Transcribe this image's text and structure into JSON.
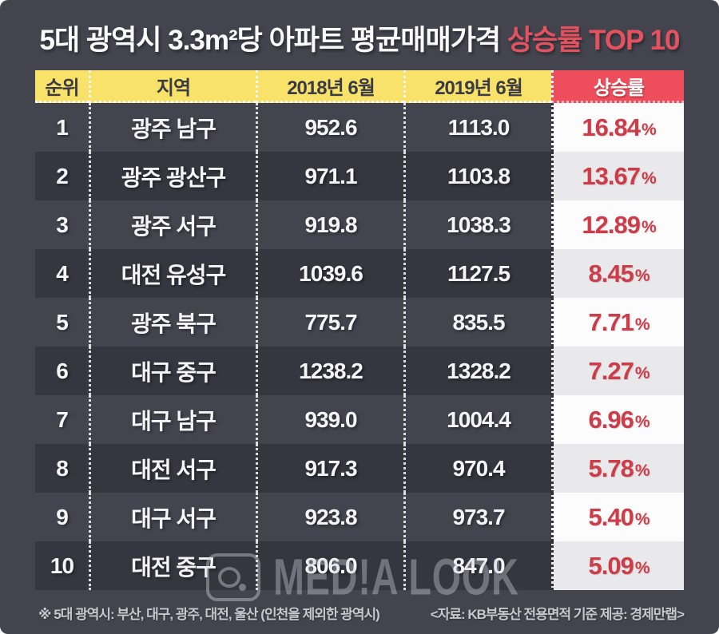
{
  "title": {
    "main": "5대 광역시 3.3m²당 아파트 평균매매가격 ",
    "highlight": "상승률 TOP 10"
  },
  "table": {
    "headers": [
      "순위",
      "지역",
      "2018년 6월",
      "2019년 6월",
      "상승률"
    ],
    "rows": [
      {
        "rank": "1",
        "region": "광주 남구",
        "v2018": "952.6",
        "v2019": "1113.0",
        "rate": "16.84",
        "unit": "%"
      },
      {
        "rank": "2",
        "region": "광주 광산구",
        "v2018": "971.1",
        "v2019": "1103.8",
        "rate": "13.67",
        "unit": "%"
      },
      {
        "rank": "3",
        "region": "광주 서구",
        "v2018": "919.8",
        "v2019": "1038.3",
        "rate": "12.89",
        "unit": "%"
      },
      {
        "rank": "4",
        "region": "대전 유성구",
        "v2018": "1039.6",
        "v2019": "1127.5",
        "rate": "8.45",
        "unit": "%"
      },
      {
        "rank": "5",
        "region": "광주 북구",
        "v2018": "775.7",
        "v2019": "835.5",
        "rate": "7.71",
        "unit": "%"
      },
      {
        "rank": "6",
        "region": "대구 중구",
        "v2018": "1238.2",
        "v2019": "1328.2",
        "rate": "7.27",
        "unit": "%"
      },
      {
        "rank": "7",
        "region": "대구 남구",
        "v2018": "939.0",
        "v2019": "1004.4",
        "rate": "6.96",
        "unit": "%"
      },
      {
        "rank": "8",
        "region": "대전 서구",
        "v2018": "917.3",
        "v2019": "970.4",
        "rate": "5.78",
        "unit": "%"
      },
      {
        "rank": "9",
        "region": "대구 서구",
        "v2018": "923.8",
        "v2019": "973.7",
        "rate": "5.40",
        "unit": "%"
      },
      {
        "rank": "10",
        "region": "대전 중구",
        "v2018": "806.0",
        "v2019": "847.0",
        "rate": "5.09",
        "unit": "%"
      }
    ]
  },
  "watermark": {
    "text": "MED!A LOOK",
    "icon": "camera-icon"
  },
  "footnotes": {
    "left": "※ 5대 광역시: 부산, 대구, 광주, 대전, 울산 (인천을 제외한 광역시)",
    "right": "<자료: KB부동산 전용면적 기준 제공: 경제만랩>"
  },
  "colors": {
    "background": "#43444e",
    "even_row_band": "#35363f",
    "header_yellow": "#f8e26a",
    "header_red": "#ee4e5c",
    "rate_text_red": "#cc3d49",
    "title_highlight_red": "#e4525f",
    "rate_cell_white": "#fcfcfd",
    "rate_cell_gray": "#e9e9eb"
  },
  "chart_data": {
    "type": "table",
    "title": "5대 광역시 3.3m²당 아파트 평균매매가격 상승률 TOP 10",
    "columns": [
      "순위",
      "지역",
      "2018년 6월",
      "2019년 6월",
      "상승률"
    ],
    "rows": [
      [
        1,
        "광주 남구",
        952.6,
        1113.0,
        "16.84%"
      ],
      [
        2,
        "광주 광산구",
        971.1,
        1103.8,
        "13.67%"
      ],
      [
        3,
        "광주 서구",
        919.8,
        1038.3,
        "12.89%"
      ],
      [
        4,
        "대전 유성구",
        1039.6,
        1127.5,
        "8.45%"
      ],
      [
        5,
        "광주 북구",
        775.7,
        835.5,
        "7.71%"
      ],
      [
        6,
        "대구 중구",
        1238.2,
        1328.2,
        "7.27%"
      ],
      [
        7,
        "대구 남구",
        939.0,
        1004.4,
        "6.96%"
      ],
      [
        8,
        "대전 서구",
        917.3,
        970.4,
        "5.78%"
      ],
      [
        9,
        "대구 서구",
        923.8,
        973.7,
        "5.40%"
      ],
      [
        10,
        "대전 중구",
        806.0,
        847.0,
        "5.09%"
      ]
    ],
    "source_note": "<자료: KB부동산 전용면적 기준 제공: 경제만랩>",
    "definition_note": "※ 5대 광역시: 부산, 대구, 광주, 대전, 울산 (인천을 제외한 광역시)"
  }
}
